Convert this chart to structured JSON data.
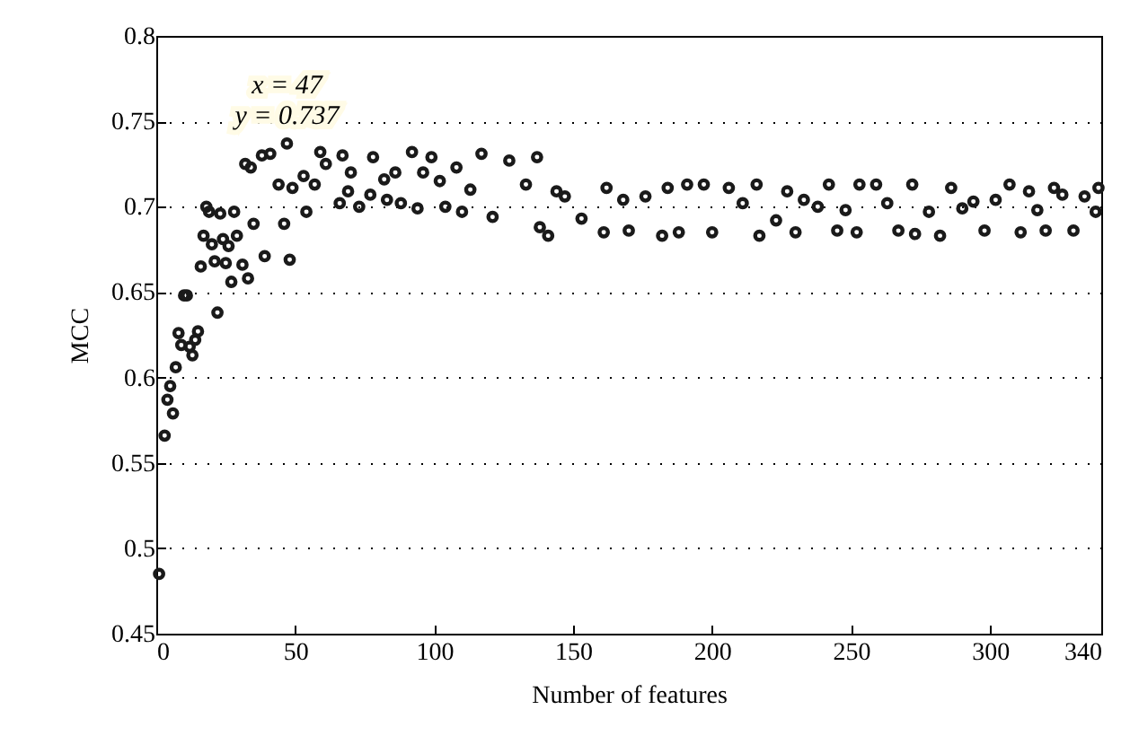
{
  "chart_data": {
    "type": "scatter",
    "xlabel": "Number of features",
    "ylabel": "MCC",
    "xlim": [
      0,
      340
    ],
    "xticks": [
      0,
      50,
      100,
      150,
      200,
      250,
      300,
      340
    ],
    "ylim": [
      0.45,
      0.8
    ],
    "yticks": [
      0.45,
      0.5,
      0.55,
      0.6,
      0.65,
      0.7,
      0.75,
      0.8
    ],
    "grid": "y",
    "marker": "circle",
    "annotations": [
      {
        "text": "x = 47\ny = 0.737",
        "x": 47,
        "y": 0.737
      }
    ],
    "series": [
      {
        "color": "#1a1a1a",
        "x": [
          1,
          3,
          4,
          5,
          6,
          7,
          8,
          9,
          10,
          11,
          12,
          13,
          14,
          15,
          16,
          17,
          18,
          19,
          20,
          21,
          22,
          23,
          24,
          25,
          26,
          27,
          28,
          29,
          31,
          32,
          33,
          34,
          35,
          38,
          39,
          41,
          44,
          46,
          47,
          48,
          49,
          53,
          54,
          57,
          59,
          61,
          66,
          67,
          69,
          70,
          73,
          77,
          78,
          82,
          83,
          86,
          88,
          92,
          94,
          96,
          99,
          102,
          104,
          108,
          110,
          113,
          117,
          121,
          127,
          133,
          137,
          138,
          141,
          144,
          147,
          153,
          161,
          162,
          168,
          170,
          176,
          182,
          184,
          188,
          191,
          197,
          200,
          206,
          211,
          216,
          217,
          223,
          227,
          230,
          233,
          238,
          242,
          245,
          248,
          252,
          253,
          259,
          263,
          267,
          272,
          273,
          278,
          282,
          286,
          290,
          294,
          298,
          302,
          307,
          311,
          314,
          317,
          320,
          323,
          326,
          330,
          334,
          338,
          339
        ],
        "values": [
          0.485,
          0.566,
          0.587,
          0.595,
          0.579,
          0.606,
          0.626,
          0.619,
          0.648,
          0.648,
          0.618,
          0.613,
          0.622,
          0.627,
          0.665,
          0.683,
          0.7,
          0.697,
          0.678,
          0.668,
          0.638,
          0.696,
          0.681,
          0.667,
          0.677,
          0.656,
          0.697,
          0.683,
          0.666,
          0.725,
          0.658,
          0.723,
          0.69,
          0.73,
          0.671,
          0.731,
          0.713,
          0.69,
          0.737,
          0.669,
          0.711,
          0.718,
          0.697,
          0.713,
          0.732,
          0.725,
          0.702,
          0.73,
          0.709,
          0.72,
          0.7,
          0.707,
          0.729,
          0.716,
          0.704,
          0.72,
          0.702,
          0.732,
          0.699,
          0.72,
          0.729,
          0.715,
          0.7,
          0.723,
          0.697,
          0.71,
          0.731,
          0.694,
          0.727,
          0.713,
          0.729,
          0.688,
          0.683,
          0.709,
          0.706,
          0.693,
          0.685,
          0.711,
          0.704,
          0.686,
          0.706,
          0.683,
          0.711,
          0.685,
          0.713,
          0.713,
          0.685,
          0.711,
          0.702,
          0.713,
          0.683,
          0.692,
          0.709,
          0.685,
          0.704,
          0.7,
          0.713,
          0.686,
          0.698,
          0.685,
          0.713,
          0.713,
          0.702,
          0.686,
          0.713,
          0.684,
          0.697,
          0.683,
          0.711,
          0.699,
          0.703,
          0.686,
          0.704,
          0.713,
          0.685,
          0.709,
          0.698,
          0.686,
          0.711,
          0.707,
          0.686,
          0.706,
          0.697,
          0.711
        ]
      }
    ]
  }
}
